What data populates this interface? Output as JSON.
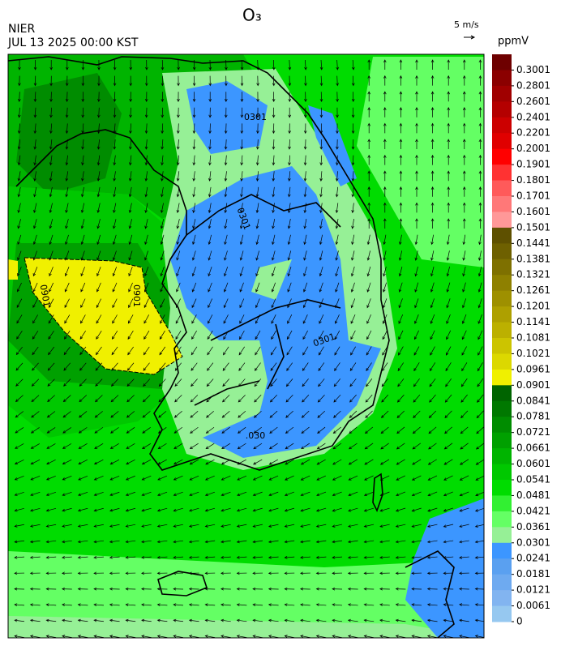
{
  "header": {
    "title": "O₃",
    "agency": "NIER",
    "datetime": "JUL 13 2025 00:00 KST",
    "wind_scale": "5 m/s"
  },
  "colorbar": {
    "unit": "ppmV",
    "labels": [
      0.3001,
      0.2801,
      0.2601,
      0.2401,
      0.2201,
      0.2001,
      0.1901,
      0.1801,
      0.1701,
      0.1601,
      0.1501,
      0.1441,
      0.1381,
      0.1321,
      0.1261,
      0.1201,
      0.1141,
      0.1081,
      0.1021,
      0.0961,
      0.0901,
      0.0841,
      0.0781,
      0.0721,
      0.0661,
      0.0601,
      0.0541,
      0.0481,
      0.0421,
      0.0361,
      0.0301,
      0.0241,
      0.0181,
      0.0121,
      0.0061,
      0
    ],
    "colors": [
      "#6e0000",
      "#8b0000",
      "#a00000",
      "#b40000",
      "#cc0000",
      "#e00000",
      "#ff0000",
      "#ff3232",
      "#ff5a5a",
      "#ff7878",
      "#ff9898",
      "#5e5000",
      "#6e6000",
      "#7e7000",
      "#8e8000",
      "#9e9000",
      "#aea000",
      "#bcb000",
      "#ccc400",
      "#dcd800",
      "#f0f000",
      "#006400",
      "#007800",
      "#008c00",
      "#00a000",
      "#00b400",
      "#00c800",
      "#00dc00",
      "#32f032",
      "#64ff64",
      "#96f096",
      "#3c96ff",
      "#5aa0f0",
      "#6eaaf0",
      "#82b4f0",
      "#96c8f0"
    ]
  },
  "contour_labels": [
    "0301",
    "0901",
    "0901",
    ".030",
    "0301",
    "0301"
  ]
}
